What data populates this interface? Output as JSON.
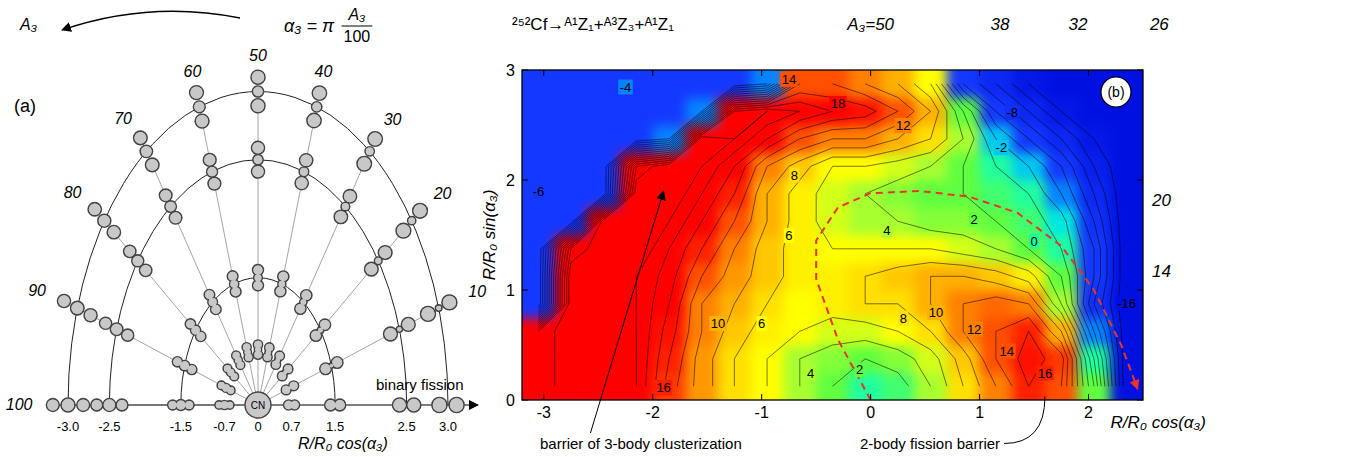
{
  "diagram": {
    "panel_label": "(a)",
    "arc_label": "A₃",
    "formula": {
      "lhs": "α₃ = π",
      "numerator": "A₃",
      "denominator": "100"
    },
    "rays": [
      10,
      20,
      30,
      40,
      50,
      60,
      70,
      80,
      90,
      100
    ],
    "center_label": "CN",
    "axis_arrow_label": "binary fission",
    "axis_label": "R/R₀ cos(α₃)",
    "ticks": [
      {
        "value": -3,
        "label": "-3.0"
      },
      {
        "value": -2.5,
        "label": "-2.5"
      },
      {
        "value": -1.5,
        "label": "-1.5"
      },
      {
        "value": -0.7,
        "label": "-0.7"
      },
      0,
      {
        "value": 0.7,
        "label": "0.7"
      },
      {
        "value": 1.5,
        "label": "1.5"
      },
      {
        "value": 2.5,
        "label": "2.5"
      },
      {
        "value": 3,
        "label": "3.0"
      }
    ]
  },
  "chart_data": {
    "type": "contour",
    "panel_label": "(b)",
    "title": "²⁵²Cf→ᴬ¹Z₁+ᴬ³Z₃+ᴬ¹Z₁",
    "x_label": "R/R₀ cos(α₃)",
    "y_label": "R/R₀ sin(α₃)",
    "xlim": [
      -3.2,
      2.5
    ],
    "ylim": [
      0,
      3
    ],
    "xticks": [
      -3,
      -2,
      -1,
      0,
      1,
      2
    ],
    "yticks": [
      0,
      1,
      2,
      3
    ],
    "x": [
      -3.05,
      -2.75,
      -2.45,
      -2.15,
      -1.85,
      -1.55,
      -1.25,
      -0.95,
      -0.65,
      -0.35,
      -0.05,
      0.25,
      0.55,
      0.85,
      1.15,
      1.45,
      1.75,
      2.05,
      2.35
    ],
    "y": [
      0.125,
      0.375,
      0.625,
      0.875,
      1.125,
      1.375,
      1.625,
      1.875,
      2.125,
      2.375,
      2.625,
      2.875
    ],
    "z": [
      [
        20,
        24,
        24,
        22,
        15,
        11,
        8,
        6,
        4,
        2,
        0,
        1,
        4,
        8,
        12,
        16,
        14,
        2,
        -16
      ],
      [
        20,
        24,
        24,
        22,
        16,
        11,
        8,
        6,
        4,
        3,
        2,
        3,
        5,
        9,
        14,
        17,
        15,
        0,
        -16
      ],
      [
        20,
        24,
        24,
        22,
        17,
        12,
        9,
        7,
        6,
        5,
        5,
        6,
        8,
        12,
        14,
        16,
        10,
        -4,
        -16
      ],
      [
        -6,
        24,
        24,
        22,
        18,
        12,
        10,
        8,
        6,
        7,
        8,
        8,
        10,
        12,
        13,
        12,
        4,
        -8,
        -16
      ],
      [
        -6,
        24,
        24,
        22,
        19,
        14,
        11,
        9,
        7,
        7,
        8,
        9,
        10,
        10,
        9,
        7,
        2,
        -6,
        -16
      ],
      [
        -6,
        20,
        24,
        24,
        20,
        16,
        12,
        9,
        7,
        6,
        6,
        6,
        6,
        5,
        4,
        2,
        0,
        -6,
        -16
      ],
      [
        -6,
        -6,
        24,
        24,
        22,
        18,
        14,
        10,
        7,
        5,
        4,
        4,
        3,
        3,
        2,
        1,
        -1,
        -8,
        -16
      ],
      [
        -6,
        -6,
        -6,
        24,
        24,
        20,
        16,
        10,
        7,
        5,
        4,
        3,
        2,
        2,
        1,
        0,
        -4,
        -10,
        -16
      ],
      [
        -6,
        -6,
        -6,
        20,
        24,
        22,
        18,
        12,
        9,
        6,
        6,
        5,
        4,
        2,
        0,
        -2,
        -6,
        -12,
        -16
      ],
      [
        -6,
        -6,
        -6,
        -6,
        -4,
        24,
        22,
        18,
        14,
        12,
        12,
        10,
        8,
        4,
        -2,
        -6,
        -10,
        -14,
        -16
      ],
      [
        -6,
        -6,
        -6,
        -6,
        -6,
        -4,
        20,
        22,
        20,
        18,
        17,
        14,
        10,
        2,
        -6,
        -10,
        -14,
        -16,
        -16
      ],
      [
        -6,
        -6,
        -6,
        -6,
        -6,
        -6,
        -6,
        -4,
        14,
        14,
        12,
        10,
        6,
        -6,
        -10,
        -14,
        -16,
        -16,
        -16
      ]
    ],
    "levels": [
      -14,
      -12,
      -10,
      -8,
      -6,
      -4,
      -2,
      0,
      2,
      4,
      6,
      8,
      10,
      12,
      14,
      16,
      18,
      20,
      22
    ],
    "contour_labels": [
      {
        "x": -2.25,
        "y": 2.85,
        "value": -4
      },
      {
        "x": -0.75,
        "y": 2.92,
        "value": 14
      },
      {
        "x": -0.3,
        "y": 2.7,
        "value": 18
      },
      {
        "x": 0.3,
        "y": 2.5,
        "value": 12
      },
      {
        "x": 1.3,
        "y": 2.62,
        "value": -8
      },
      {
        "x": 1.2,
        "y": 2.3,
        "value": -2
      },
      {
        "x": -3.05,
        "y": 1.9,
        "value": -6
      },
      {
        "x": -0.7,
        "y": 2.05,
        "value": 8
      },
      {
        "x": -0.75,
        "y": 1.5,
        "value": 6
      },
      {
        "x": 0.15,
        "y": 1.55,
        "value": 4
      },
      {
        "x": 0.95,
        "y": 1.65,
        "value": 2
      },
      {
        "x": 1.5,
        "y": 1.45,
        "value": 0
      },
      {
        "x": -1.4,
        "y": 0.7,
        "value": 10
      },
      {
        "x": -1.0,
        "y": 0.7,
        "value": 6
      },
      {
        "x": -1.9,
        "y": 0.12,
        "value": 16
      },
      {
        "x": -0.55,
        "y": 0.25,
        "value": 4
      },
      {
        "x": -0.1,
        "y": 0.28,
        "value": 2
      },
      {
        "x": 0.3,
        "y": 0.75,
        "value": 8
      },
      {
        "x": 0.6,
        "y": 0.8,
        "value": 10
      },
      {
        "x": 0.95,
        "y": 0.65,
        "value": 12
      },
      {
        "x": 1.25,
        "y": 0.45,
        "value": 14
      },
      {
        "x": 1.6,
        "y": 0.25,
        "value": 16
      },
      {
        "x": 2.35,
        "y": 0.88,
        "value": -16
      }
    ],
    "a3_labels": [
      {
        "value": 50,
        "label": "A₃=50"
      },
      38,
      32,
      26,
      20,
      14
    ],
    "path": {
      "x": [
        0,
        -0.3,
        -0.5,
        -0.5,
        -0.3,
        0,
        0.45,
        0.9,
        1.35,
        1.75,
        2.05,
        2.3,
        2.45
      ],
      "y": [
        0,
        0.55,
        1.1,
        1.45,
        1.75,
        1.88,
        1.9,
        1.85,
        1.7,
        1.4,
        1.0,
        0.5,
        0.1
      ],
      "color": "#e8352a",
      "line_style": "dashed"
    },
    "annotations": [
      {
        "text": "barrier of 3-body clusterization",
        "x": -1.9,
        "y": 1.9
      },
      {
        "text": "2-body fission barrier",
        "x": 1.6,
        "y": 0.05
      }
    ]
  }
}
